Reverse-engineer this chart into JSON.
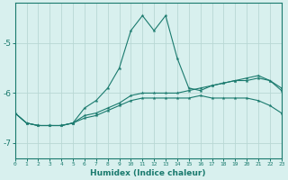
{
  "xlabel": "Humidex (Indice chaleur)",
  "ylabel": "",
  "bg_color": "#d8f0ee",
  "grid_color": "#b8d8d4",
  "line_color": "#1a7a6e",
  "xlim": [
    0,
    23
  ],
  "ylim": [
    -7.3,
    -4.2
  ],
  "yticks": [
    -7,
    -6,
    -5
  ],
  "xticks": [
    0,
    1,
    2,
    3,
    4,
    5,
    6,
    7,
    8,
    9,
    10,
    11,
    12,
    13,
    14,
    15,
    16,
    17,
    18,
    19,
    20,
    21,
    22,
    23
  ],
  "line1_x": [
    0,
    1,
    2,
    3,
    4,
    5,
    6,
    7,
    8,
    9,
    10,
    11,
    12,
    13,
    14,
    15,
    16,
    17,
    18,
    19,
    20,
    21,
    22,
    23
  ],
  "line1_y": [
    -6.4,
    -6.6,
    -6.65,
    -6.65,
    -6.65,
    -6.6,
    -6.5,
    -6.45,
    -6.35,
    -6.25,
    -6.15,
    -6.1,
    -6.1,
    -6.1,
    -6.1,
    -6.1,
    -6.05,
    -6.1,
    -6.1,
    -6.1,
    -6.1,
    -6.15,
    -6.25,
    -6.4
  ],
  "line2_x": [
    0,
    1,
    2,
    3,
    4,
    5,
    6,
    7,
    8,
    9,
    10,
    11,
    12,
    13,
    14,
    15,
    16,
    17,
    18,
    19,
    20,
    21,
    22,
    23
  ],
  "line2_y": [
    -6.4,
    -6.6,
    -6.65,
    -6.65,
    -6.65,
    -6.6,
    -6.3,
    -6.15,
    -5.9,
    -5.5,
    -4.75,
    -4.45,
    -4.75,
    -4.45,
    -5.3,
    -5.9,
    -5.95,
    -5.85,
    -5.8,
    -5.75,
    -5.75,
    -5.7,
    -5.75,
    -5.95
  ],
  "line3_x": [
    0,
    1,
    2,
    3,
    4,
    5,
    6,
    7,
    8,
    9,
    10,
    11,
    12,
    13,
    14,
    15,
    16,
    17,
    18,
    19,
    20,
    21,
    22,
    23
  ],
  "line3_y": [
    -6.4,
    -6.6,
    -6.65,
    -6.65,
    -6.65,
    -6.6,
    -6.45,
    -6.4,
    -6.3,
    -6.2,
    -6.05,
    -6.0,
    -6.0,
    -6.0,
    -6.0,
    -5.95,
    -5.9,
    -5.85,
    -5.8,
    -5.75,
    -5.7,
    -5.65,
    -5.75,
    -5.9
  ]
}
